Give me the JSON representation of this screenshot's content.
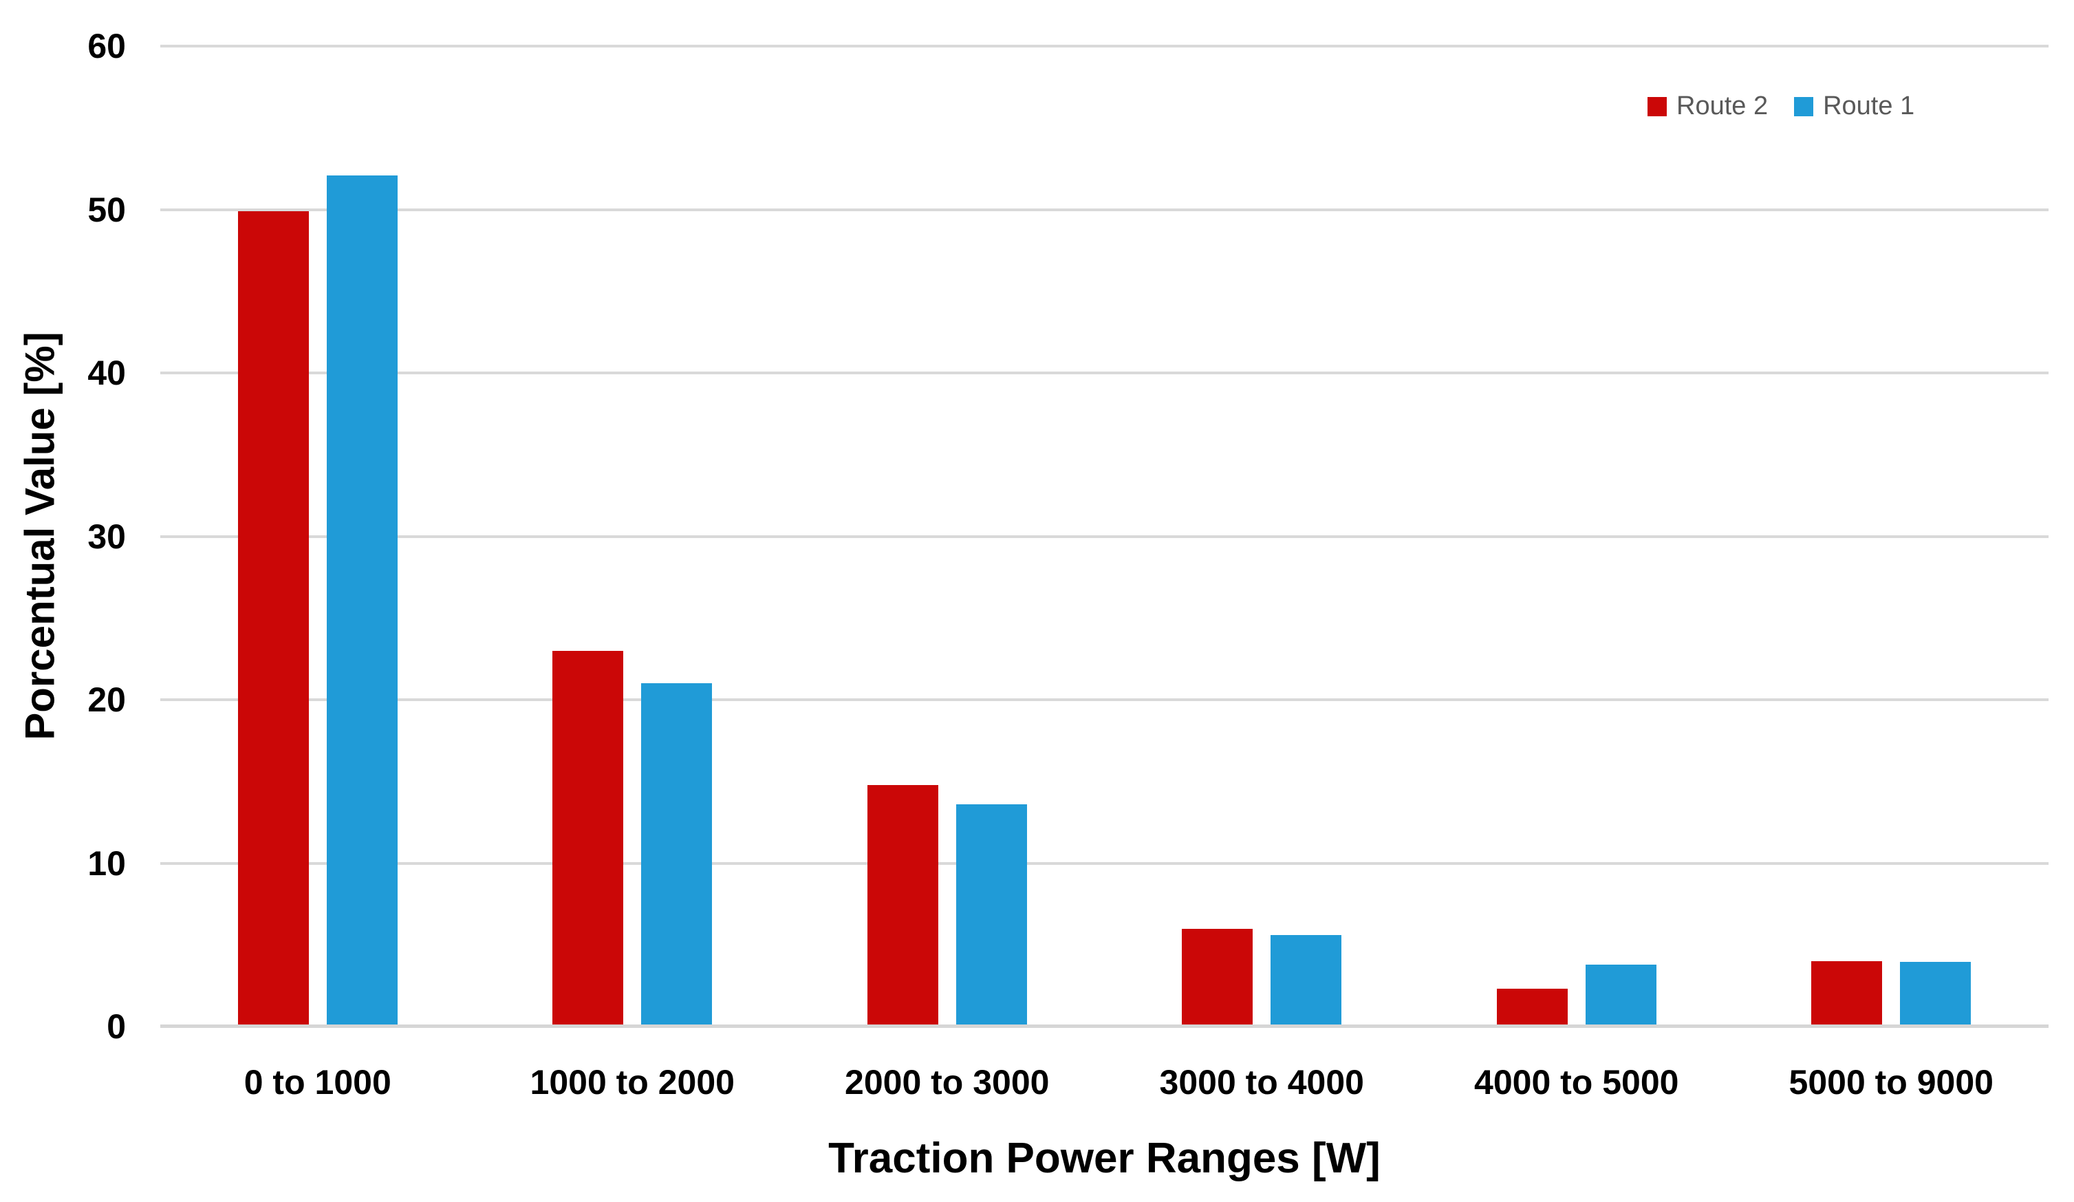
{
  "chart_data": {
    "type": "bar",
    "title": "",
    "categories": [
      "0 to 1000",
      "1000 to 2000",
      "2000 to 3000",
      "3000 to 4000",
      "4000 to 5000",
      "5000 to 9000"
    ],
    "series": [
      {
        "name": "Route 2",
        "color": "#CB0707",
        "values": [
          49.9,
          23.0,
          14.8,
          6.0,
          2.3,
          4.0
        ]
      },
      {
        "name": "Route 1",
        "color": "#209BD7",
        "values": [
          52.1,
          21.0,
          13.6,
          5.6,
          3.8,
          3.95
        ]
      }
    ],
    "xlabel": "Traction Power Ranges [W]",
    "ylabel": "Porcentual Value [%]",
    "ylim": [
      0,
      60
    ],
    "yticks": [
      0,
      10,
      20,
      30,
      40,
      50,
      60
    ],
    "grid": true,
    "legend_position": "top-right"
  },
  "colors": {
    "gridline": "#D9D9D9",
    "axis_text": "#000000",
    "legend_text": "#595959",
    "background": "#FFFFFF"
  }
}
